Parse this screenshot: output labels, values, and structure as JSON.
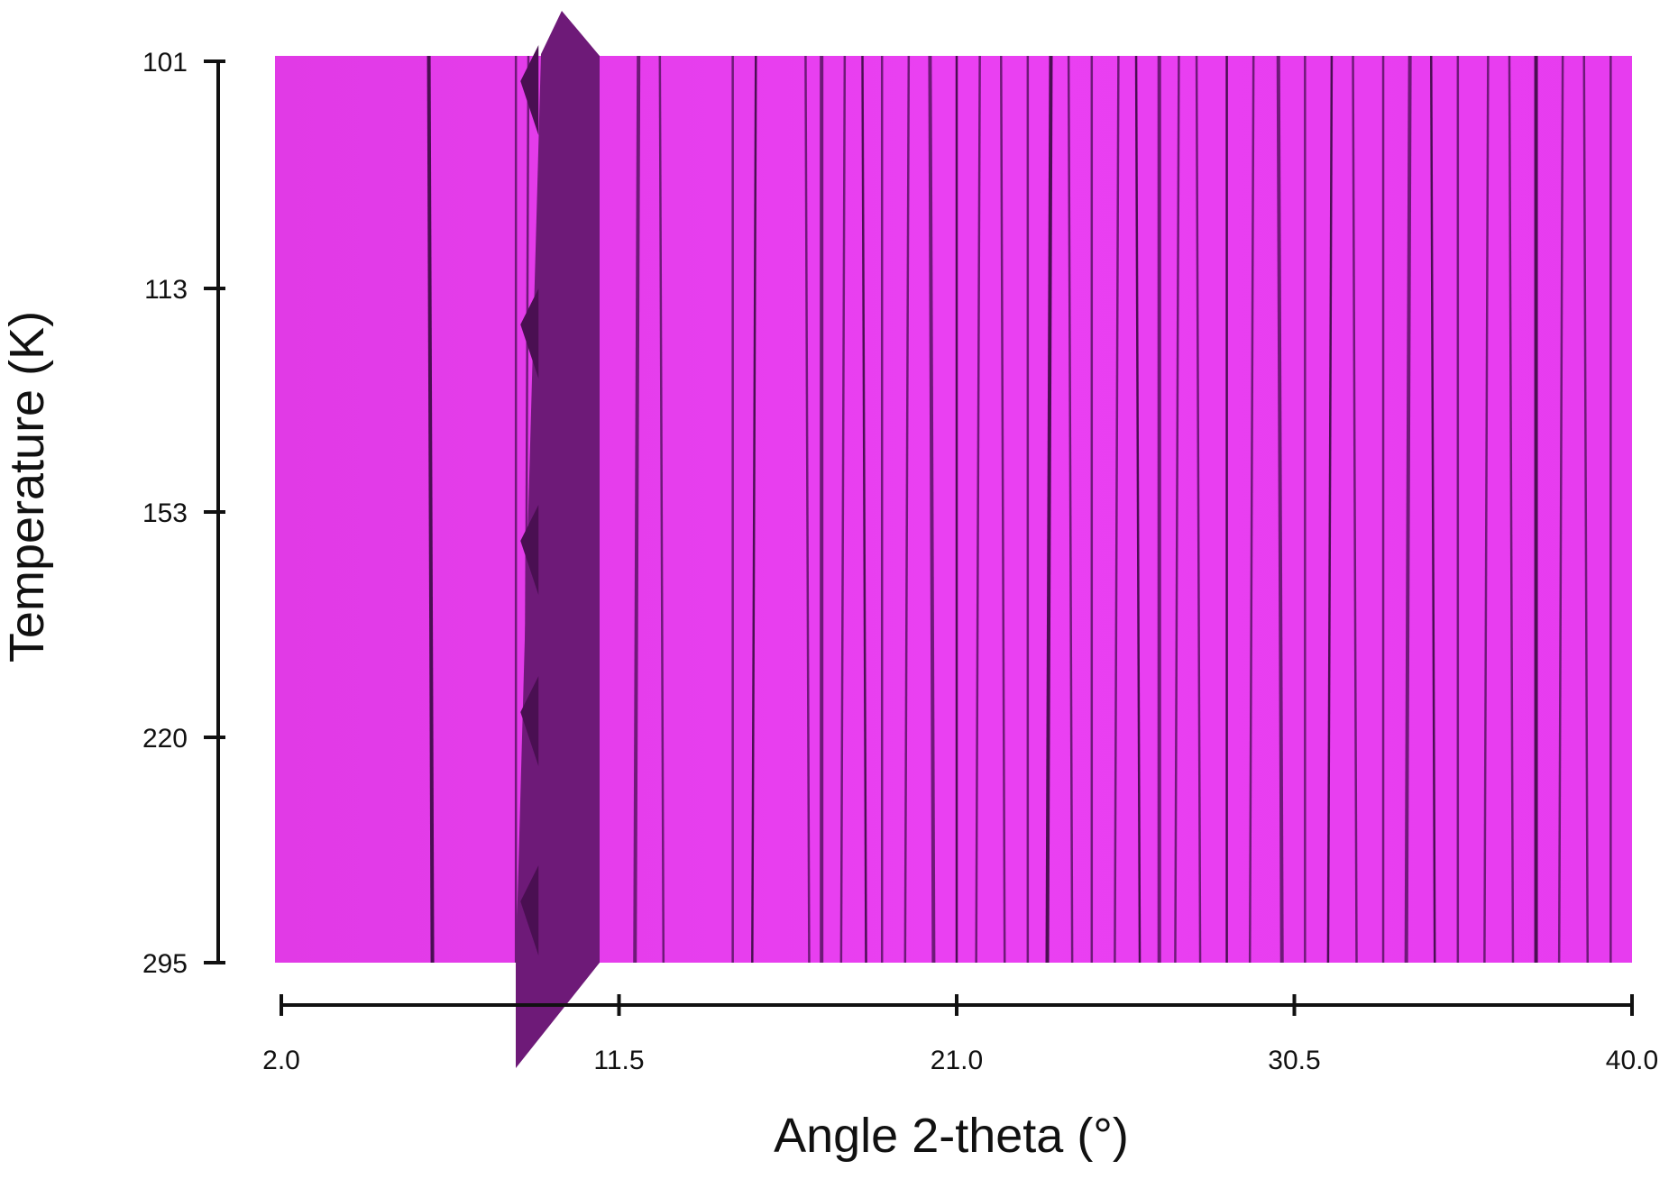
{
  "chart_data": {
    "type": "heatmap",
    "title": "",
    "xlabel": "Angle 2-theta (°)",
    "ylabel": "Temperature (K)",
    "xlim": [
      2.0,
      40.0
    ],
    "x_ticks": [
      "2.0",
      "11.5",
      "21.0",
      "30.5",
      "40.0"
    ],
    "y_tick_labels": [
      "101",
      "113",
      "153",
      "220",
      "295"
    ],
    "grid": false,
    "legend": "none",
    "colors": {
      "background_field": "#e83cf0",
      "peak": "#6e1a78",
      "peak_dark": "#4a0f52",
      "axis": "#111111"
    },
    "peaks_two_theta": [
      6.2,
      8.6,
      8.9,
      9.4,
      10.5,
      12.0,
      12.7,
      14.7,
      15.3,
      16.8,
      17.2,
      17.8,
      18.4,
      18.9,
      19.6,
      20.3,
      21.0,
      21.6,
      22.3,
      23.0,
      23.6,
      24.2,
      24.8,
      25.5,
      26.1,
      26.7,
      27.2,
      27.8,
      28.6,
      29.3,
      30.1,
      30.8,
      31.5,
      32.2,
      33.0,
      33.7,
      34.4,
      35.1,
      35.9,
      36.6,
      37.3,
      38.0,
      38.7,
      39.4
    ],
    "strong_peak_two_theta": 10.2
  }
}
